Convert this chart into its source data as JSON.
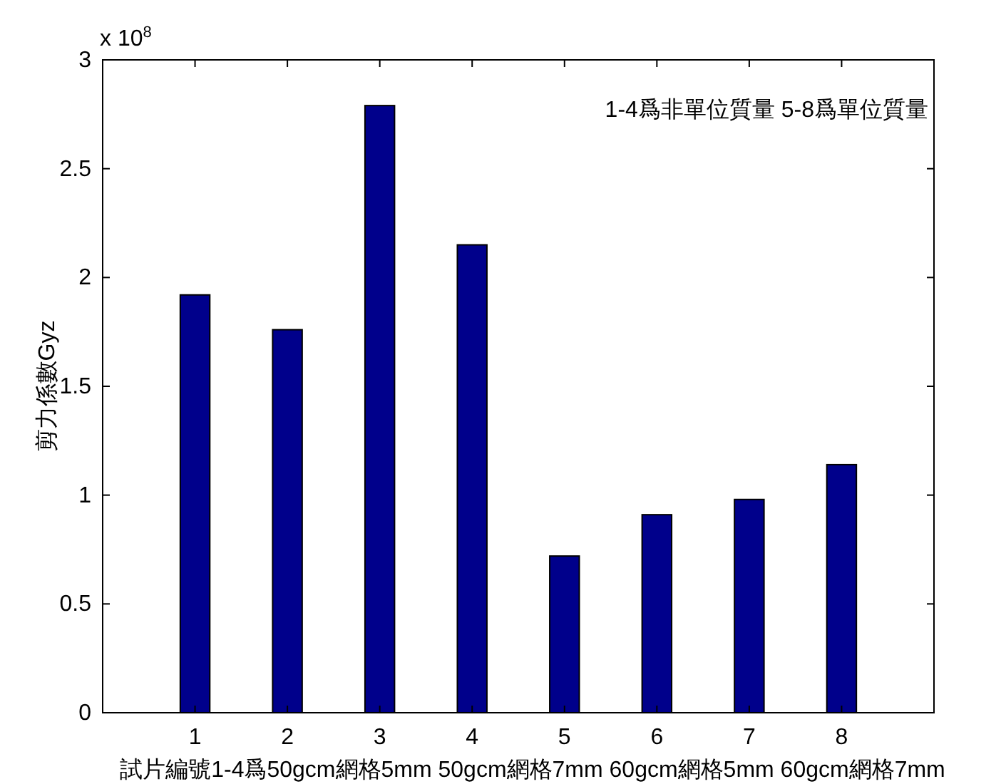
{
  "chart_data": {
    "type": "bar",
    "xlabel": "試片編號1-4爲50gcm網格5mm 50gcm網格7mm 60gcm網格5mm 60gcm網格7mm",
    "ylabel": "剪力係數Gyz",
    "categories": [
      "1",
      "2",
      "3",
      "4",
      "5",
      "6",
      "7",
      "8"
    ],
    "values": [
      1.92,
      1.76,
      2.79,
      2.15,
      0.72,
      0.91,
      0.98,
      1.14
    ],
    "color": "#00008b",
    "ylim": [
      0,
      3
    ],
    "yticks": [
      0,
      0.5,
      1,
      1.5,
      2,
      2.5,
      3
    ],
    "annotations": [
      "x 10$^{8}$",
      "1-4爲非單位質量 5-8爲單位質量"
    ]
  }
}
